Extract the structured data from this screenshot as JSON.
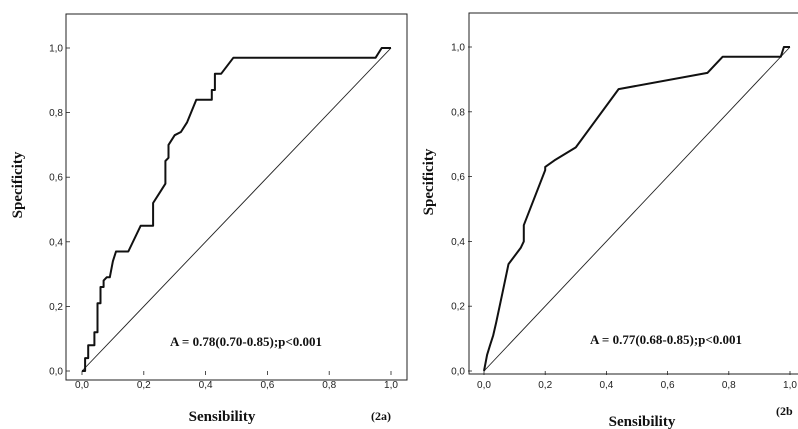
{
  "chart_data": [
    {
      "type": "line",
      "panel_label": "(2a)",
      "xlabel": "Sensibility",
      "ylabel": "Specificity",
      "xlim": [
        0,
        1
      ],
      "ylim": [
        0,
        1
      ],
      "x_ticks": [
        "0,0",
        "0,2",
        "0,4",
        "0,6",
        "0,8",
        "1,0"
      ],
      "y_ticks": [
        "0,0",
        "0,2",
        "0,4",
        "0,6",
        "0,8",
        "1,0"
      ],
      "annotation": "A = 0.78(0.70-0.85);p<0.001",
      "series": [
        {
          "points": [
            [
              0,
              0
            ],
            [
              0.01,
              0
            ],
            [
              0.01,
              0.04
            ],
            [
              0.02,
              0.04
            ],
            [
              0.02,
              0.08
            ],
            [
              0.04,
              0.08
            ],
            [
              0.04,
              0.12
            ],
            [
              0.05,
              0.12
            ],
            [
              0.05,
              0.21
            ],
            [
              0.06,
              0.21
            ],
            [
              0.06,
              0.26
            ],
            [
              0.07,
              0.26
            ],
            [
              0.07,
              0.28
            ],
            [
              0.08,
              0.29
            ],
            [
              0.09,
              0.29
            ],
            [
              0.1,
              0.34
            ],
            [
              0.11,
              0.37
            ],
            [
              0.15,
              0.37
            ],
            [
              0.19,
              0.45
            ],
            [
              0.23,
              0.45
            ],
            [
              0.23,
              0.52
            ],
            [
              0.25,
              0.55
            ],
            [
              0.27,
              0.58
            ],
            [
              0.27,
              0.65
            ],
            [
              0.28,
              0.66
            ],
            [
              0.28,
              0.7
            ],
            [
              0.3,
              0.73
            ],
            [
              0.32,
              0.74
            ],
            [
              0.34,
              0.77
            ],
            [
              0.37,
              0.84
            ],
            [
              0.42,
              0.84
            ],
            [
              0.42,
              0.87
            ],
            [
              0.43,
              0.87
            ],
            [
              0.43,
              0.92
            ],
            [
              0.45,
              0.92
            ],
            [
              0.49,
              0.97
            ],
            [
              0.95,
              0.97
            ],
            [
              0.97,
              1.0
            ],
            [
              1.0,
              1.0
            ]
          ]
        },
        {
          "role": "reference",
          "points": [
            [
              0,
              0
            ],
            [
              1,
              1
            ]
          ]
        }
      ]
    },
    {
      "type": "line",
      "panel_label": "(2b",
      "xlabel": "Sensibility",
      "ylabel": "Specificity",
      "xlim": [
        0,
        1
      ],
      "ylim": [
        0,
        1
      ],
      "x_ticks": [
        "0,0",
        "0,2",
        "0,4",
        "0,6",
        "0,8",
        "1,0"
      ],
      "y_ticks": [
        "0,0",
        "0,2",
        "0,4",
        "0,6",
        "0,8",
        "1,0"
      ],
      "annotation": "A = 0.77(0.68-0.85);p<0.001",
      "series": [
        {
          "points": [
            [
              0,
              0
            ],
            [
              0.01,
              0.05
            ],
            [
              0.02,
              0.08
            ],
            [
              0.03,
              0.11
            ],
            [
              0.04,
              0.15
            ],
            [
              0.06,
              0.24
            ],
            [
              0.08,
              0.33
            ],
            [
              0.12,
              0.38
            ],
            [
              0.13,
              0.4
            ],
            [
              0.13,
              0.45
            ],
            [
              0.2,
              0.62
            ],
            [
              0.2,
              0.63
            ],
            [
              0.23,
              0.65
            ],
            [
              0.3,
              0.69
            ],
            [
              0.44,
              0.87
            ],
            [
              0.73,
              0.92
            ],
            [
              0.78,
              0.97
            ],
            [
              0.97,
              0.97
            ],
            [
              0.98,
              1.0
            ],
            [
              1.0,
              1.0
            ]
          ]
        },
        {
          "role": "reference",
          "points": [
            [
              0,
              0
            ],
            [
              1,
              1
            ]
          ]
        }
      ]
    }
  ]
}
